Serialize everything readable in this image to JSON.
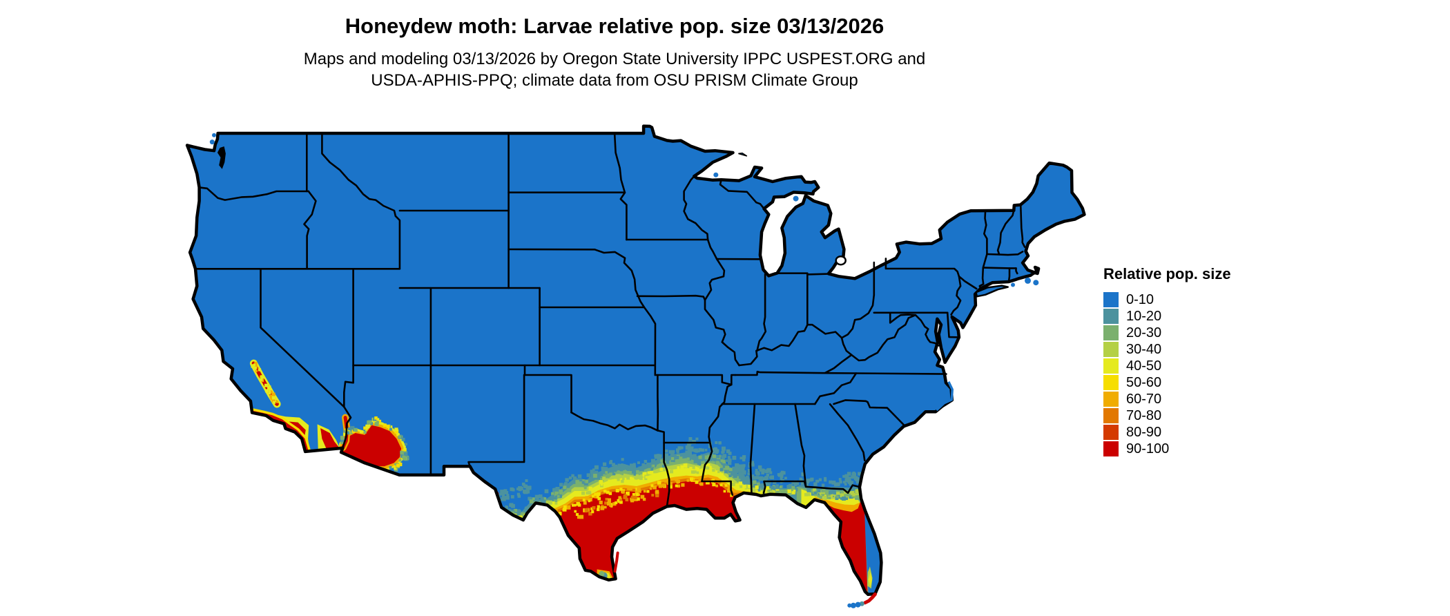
{
  "header": {
    "title": "Honeydew moth: Larvae relative pop. size 03/13/2026",
    "subtitle_line1": "Maps and modeling 03/13/2026 by Oregon State University IPPC USPEST.ORG and",
    "subtitle_line2": "USDA-APHIS-PPQ; climate data from OSU PRISM Climate Group"
  },
  "legend": {
    "title": "Relative pop. size",
    "items": [
      {
        "label": "0-10",
        "color": "#1B74C9"
      },
      {
        "label": "10-20",
        "color": "#4C929E"
      },
      {
        "label": "20-30",
        "color": "#7BB06E"
      },
      {
        "label": "30-40",
        "color": "#B4D045"
      },
      {
        "label": "40-50",
        "color": "#E5EA1F"
      },
      {
        "label": "50-60",
        "color": "#F6DE00"
      },
      {
        "label": "60-70",
        "color": "#F0AC00"
      },
      {
        "label": "70-80",
        "color": "#E27800"
      },
      {
        "label": "80-90",
        "color": "#D43A00"
      },
      {
        "label": "90-100",
        "color": "#CB0000"
      }
    ]
  },
  "map": {
    "ocean_color": "#FFFFFF",
    "border_color": "#000000"
  }
}
